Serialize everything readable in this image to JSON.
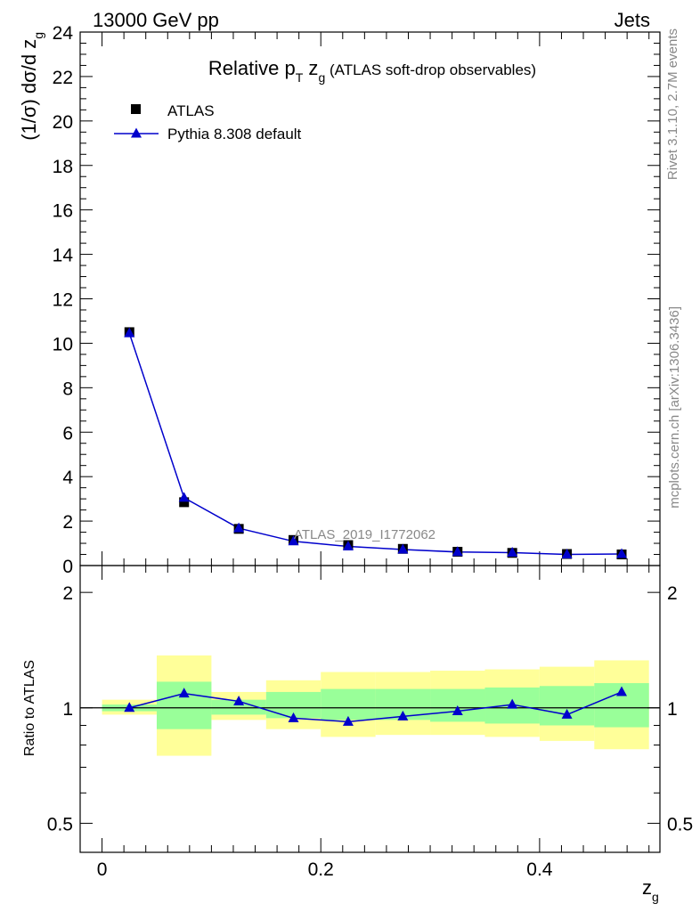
{
  "header": {
    "left": "13000 GeV pp",
    "right": "Jets"
  },
  "title": {
    "main": "Relative p",
    "sub1": "T",
    "mid": " z",
    "sub2": "g",
    "tail": " (ATLAS soft-drop observables)"
  },
  "watermark": "ATLAS_2019_I1772062",
  "side_text": {
    "rivet": "Rivet 3.1.10,  2.7M events",
    "mcplots": "mcplots.cern.ch [arXiv:1306.3436]"
  },
  "colors": {
    "data": "#000000",
    "mc": "#0000cc",
    "band_inner": "#99ff99",
    "band_outer": "#ffff99"
  },
  "chart_data": [
    {
      "type": "scatter",
      "panel": "main",
      "xlabel": "z",
      "xlabel_sub": "g",
      "ylabel": "(1/σ) dσ/d z",
      "ylabel_sub": "g",
      "xlim": [
        -0.02,
        0.51
      ],
      "ylim": [
        0,
        24
      ],
      "x_ticks": [
        "0",
        "0.2",
        "0.4"
      ],
      "y_ticks": [
        "0",
        "2",
        "4",
        "6",
        "8",
        "10",
        "12",
        "14",
        "16",
        "18",
        "20",
        "22",
        "24"
      ],
      "legend_placement": "top-left",
      "x": [
        0.025,
        0.075,
        0.125,
        0.175,
        0.225,
        0.275,
        0.325,
        0.375,
        0.425,
        0.475
      ],
      "series": [
        {
          "name": "ATLAS",
          "marker": "square",
          "values": [
            10.5,
            2.85,
            1.65,
            1.15,
            0.92,
            0.75,
            0.62,
            0.57,
            0.52,
            0.5
          ]
        },
        {
          "name": "Pythia 8.308 default",
          "marker": "triangle",
          "line": true,
          "values": [
            10.45,
            3.05,
            1.68,
            1.09,
            0.86,
            0.72,
            0.61,
            0.58,
            0.5,
            0.52
          ]
        }
      ]
    },
    {
      "type": "line",
      "panel": "ratio",
      "ylabel": "Ratio to ATLAS",
      "ylim": [
        0.42,
        2.35
      ],
      "y_scale": "log",
      "y_ticks": [
        "0.5",
        "1",
        "2"
      ],
      "xlim": [
        -0.02,
        0.51
      ],
      "bins": [
        [
          0,
          0.05
        ],
        [
          0.05,
          0.1
        ],
        [
          0.1,
          0.15
        ],
        [
          0.15,
          0.2
        ],
        [
          0.2,
          0.25
        ],
        [
          0.25,
          0.3
        ],
        [
          0.3,
          0.35
        ],
        [
          0.35,
          0.4
        ],
        [
          0.4,
          0.45
        ],
        [
          0.45,
          0.5
        ]
      ],
      "band_inner": [
        [
          0.98,
          1.02
        ],
        [
          0.88,
          1.17
        ],
        [
          0.96,
          1.05
        ],
        [
          0.94,
          1.1
        ],
        [
          0.93,
          1.12
        ],
        [
          0.93,
          1.12
        ],
        [
          0.92,
          1.12
        ],
        [
          0.91,
          1.13
        ],
        [
          0.9,
          1.14
        ],
        [
          0.89,
          1.16
        ]
      ],
      "band_outer": [
        [
          0.96,
          1.05
        ],
        [
          0.75,
          1.37
        ],
        [
          0.93,
          1.1
        ],
        [
          0.88,
          1.18
        ],
        [
          0.84,
          1.24
        ],
        [
          0.85,
          1.24
        ],
        [
          0.85,
          1.25
        ],
        [
          0.84,
          1.26
        ],
        [
          0.82,
          1.28
        ],
        [
          0.78,
          1.33
        ]
      ],
      "x": [
        0.025,
        0.075,
        0.125,
        0.175,
        0.225,
        0.275,
        0.325,
        0.375,
        0.425,
        0.475
      ],
      "series": [
        {
          "name": "Pythia 8.308 default",
          "values": [
            1.0,
            1.09,
            1.04,
            0.94,
            0.92,
            0.95,
            0.98,
            1.02,
            0.96,
            1.1
          ]
        }
      ]
    }
  ]
}
